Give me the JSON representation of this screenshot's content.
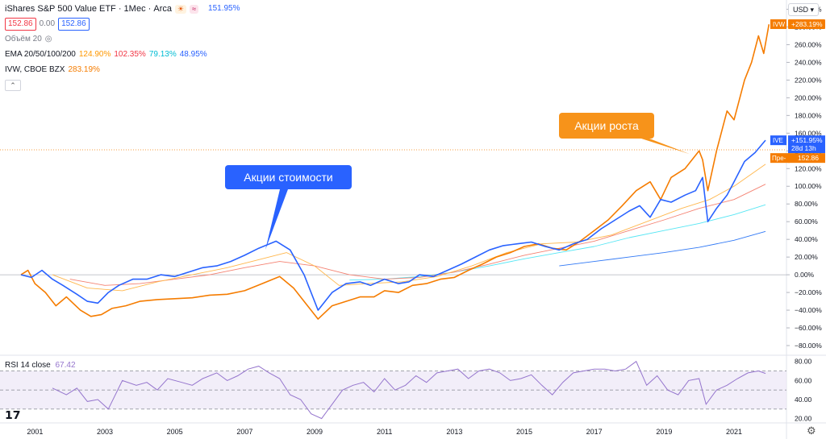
{
  "header": {
    "title": "iShares S&P 500 Value ETF · 1Мес · Arca",
    "pct": "151.95%",
    "open_box": "152.86",
    "change": "0.00",
    "close_box": "152.86",
    "volume_label": "Объём 20",
    "ema_label": "EMA 20/50/100/200",
    "ema_values": [
      "124.90%",
      "102.35%",
      "79.13%",
      "48.95%"
    ],
    "compare_label": "IVW, CBOE BZX",
    "compare_value": "283.19%",
    "currency": "USD"
  },
  "colors": {
    "ive": "#2962ff",
    "ivw": "#f57c00",
    "ema20": "#ffb74d",
    "ema50": "#f48272",
    "ema100": "#56e6f4",
    "ema200": "#3179f5",
    "rsi": "#9575cd",
    "callout_blue": "#2962ff",
    "callout_orange": "#f7931a"
  },
  "annotations": {
    "value": "Акции стоимости",
    "growth": "Акции роста"
  },
  "labels": {
    "ivw_tag": "IVW",
    "ivw_val": "+283.19%",
    "ive_tag": "IVE",
    "ive_val": "+151.95%",
    "ive_time": "28d 13h",
    "pre_tag": "Пре-",
    "pre_val": "152.86"
  },
  "rsi": {
    "label": "RSI 14 close",
    "value": "67.42"
  },
  "chart_data": {
    "type": "line",
    "x_ticks": [
      "2001",
      "2003",
      "2005",
      "2007",
      "2009",
      "2011",
      "2013",
      "2015",
      "2017",
      "2019",
      "2021"
    ],
    "y_ticks": [
      "300.00%",
      "280.00%",
      "260.00%",
      "240.00%",
      "220.00%",
      "200.00%",
      "180.00%",
      "160.00%",
      "140.00%",
      "120.00%",
      "100.00%",
      "80.00%",
      "60.00%",
      "40.00%",
      "20.00%",
      "0.00%",
      "−20.00%",
      "−40.00%",
      "−60.00%",
      "−80.00%"
    ],
    "y_tick_values": [
      300,
      280,
      260,
      240,
      220,
      200,
      180,
      160,
      140,
      120,
      100,
      80,
      60,
      40,
      20,
      0,
      -20,
      -40,
      -60,
      -80
    ],
    "ylim": [
      -90,
      305
    ],
    "xlim": [
      2000.0,
      2022.5
    ],
    "series": [
      {
        "name": "iShares S&P 500 Value ETF",
        "key": "ive",
        "x": [
          2000.6,
          2000.9,
          2001.2,
          2001.5,
          2001.8,
          2002.2,
          2002.5,
          2002.8,
          2003.1,
          2003.4,
          2003.8,
          2004.2,
          2004.6,
          2005.0,
          2005.4,
          2005.8,
          2006.2,
          2006.6,
          2007.0,
          2007.4,
          2007.9,
          2008.3,
          2008.7,
          2009.1,
          2009.5,
          2009.9,
          2010.3,
          2010.6,
          2011.0,
          2011.4,
          2011.7,
          2012.0,
          2012.4,
          2012.8,
          2013.2,
          2013.6,
          2014.0,
          2014.4,
          2014.8,
          2015.2,
          2015.6,
          2016.0,
          2016.4,
          2016.8,
          2017.2,
          2017.6,
          2018.0,
          2018.3,
          2018.6,
          2018.9,
          2019.2,
          2019.6,
          2019.9,
          2020.1,
          2020.25,
          2020.5,
          2020.8,
          2021.0,
          2021.3,
          2021.6,
          2021.9
        ],
        "values": [
          0,
          -3,
          5,
          -5,
          -12,
          -22,
          -30,
          -32,
          -20,
          -12,
          -5,
          -5,
          0,
          -2,
          3,
          8,
          10,
          15,
          22,
          30,
          38,
          28,
          0,
          -40,
          -20,
          -10,
          -8,
          -12,
          -5,
          -10,
          -8,
          0,
          -2,
          5,
          12,
          20,
          28,
          33,
          35,
          37,
          32,
          28,
          35,
          40,
          52,
          62,
          72,
          78,
          65,
          85,
          82,
          90,
          95,
          110,
          60,
          75,
          90,
          105,
          128,
          138,
          152
        ]
      },
      {
        "name": "IVW, CBOE BZX",
        "key": "ivw",
        "x": [
          2000.6,
          2000.8,
          2001.0,
          2001.3,
          2001.6,
          2001.9,
          2002.3,
          2002.6,
          2002.9,
          2003.2,
          2003.6,
          2004.0,
          2004.5,
          2005.0,
          2005.5,
          2006.0,
          2006.5,
          2007.0,
          2007.5,
          2008.0,
          2008.4,
          2008.8,
          2009.1,
          2009.5,
          2009.9,
          2010.3,
          2010.7,
          2011.0,
          2011.4,
          2011.8,
          2012.2,
          2012.6,
          2013.0,
          2013.4,
          2013.8,
          2014.2,
          2014.6,
          2015.0,
          2015.4,
          2015.8,
          2016.2,
          2016.6,
          2017.0,
          2017.4,
          2017.8,
          2018.2,
          2018.6,
          2018.9,
          2019.2,
          2019.6,
          2020.0,
          2020.1,
          2020.25,
          2020.5,
          2020.8,
          2021.0,
          2021.3,
          2021.5,
          2021.7,
          2021.85,
          2022.0
        ],
        "values": [
          0,
          5,
          -10,
          -20,
          -35,
          -25,
          -40,
          -47,
          -45,
          -38,
          -35,
          -30,
          -28,
          -27,
          -26,
          -23,
          -22,
          -18,
          -10,
          -2,
          -15,
          -35,
          -50,
          -35,
          -30,
          -25,
          -25,
          -18,
          -20,
          -12,
          -10,
          -5,
          -3,
          5,
          12,
          20,
          25,
          32,
          35,
          30,
          28,
          38,
          50,
          62,
          78,
          95,
          105,
          85,
          110,
          120,
          140,
          130,
          95,
          140,
          185,
          175,
          220,
          240,
          270,
          250,
          283
        ]
      },
      {
        "name": "EMA20",
        "key": "ema20",
        "x": [
          2001.5,
          2002.5,
          2003.5,
          2004.5,
          2005.5,
          2006.5,
          2007.5,
          2008.2,
          2009.0,
          2009.7,
          2010.5,
          2011.5,
          2012.5,
          2013.5,
          2014.5,
          2015.5,
          2016.5,
          2017.5,
          2018.5,
          2019.5,
          2020.3,
          2021.0,
          2021.9
        ],
        "values": [
          0,
          -15,
          -18,
          -8,
          0,
          8,
          18,
          25,
          10,
          -12,
          -10,
          -8,
          -2,
          10,
          25,
          35,
          37,
          45,
          60,
          75,
          85,
          100,
          124.9
        ]
      },
      {
        "name": "EMA50",
        "key": "ema50",
        "x": [
          2002.0,
          2003.0,
          2004.0,
          2005.0,
          2006.0,
          2007.0,
          2008.0,
          2009.0,
          2010.0,
          2011.0,
          2012.0,
          2013.0,
          2014.0,
          2015.0,
          2016.0,
          2017.0,
          2018.0,
          2019.0,
          2020.0,
          2021.0,
          2021.9
        ],
        "values": [
          -5,
          -12,
          -10,
          -5,
          0,
          8,
          15,
          10,
          0,
          -5,
          -3,
          3,
          12,
          22,
          30,
          38,
          50,
          62,
          75,
          85,
          102.35
        ]
      },
      {
        "name": "EMA100",
        "key": "ema100",
        "x": [
          2010.0,
          2011.0,
          2012.0,
          2013.0,
          2014.0,
          2015.0,
          2016.0,
          2017.0,
          2018.0,
          2019.0,
          2020.0,
          2021.0,
          2021.9
        ],
        "values": [
          -6,
          -5,
          -2,
          3,
          10,
          18,
          25,
          32,
          42,
          50,
          58,
          68,
          79.13
        ]
      },
      {
        "name": "EMA200",
        "key": "ema200",
        "x": [
          2016.0,
          2017.0,
          2018.0,
          2019.0,
          2020.0,
          2021.0,
          2021.9
        ],
        "values": [
          10,
          15,
          20,
          25,
          31,
          39,
          48.95
        ]
      }
    ],
    "rsi": {
      "y_ticks": [
        "80.00",
        "60.00",
        "40.00",
        "20.00"
      ],
      "y_tick_values": [
        80,
        60,
        40,
        20
      ],
      "bands": [
        70,
        50,
        30
      ],
      "ylim": [
        18,
        84
      ],
      "x": [
        2001.5,
        2001.9,
        2002.2,
        2002.5,
        2002.8,
        2003.1,
        2003.5,
        2003.9,
        2004.2,
        2004.5,
        2004.8,
        2005.2,
        2005.5,
        2005.8,
        2006.2,
        2006.5,
        2006.8,
        2007.1,
        2007.4,
        2007.7,
        2008.0,
        2008.3,
        2008.6,
        2008.9,
        2009.2,
        2009.5,
        2009.8,
        2010.1,
        2010.4,
        2010.7,
        2011.0,
        2011.3,
        2011.6,
        2011.9,
        2012.2,
        2012.5,
        2012.8,
        2013.1,
        2013.4,
        2013.7,
        2014.0,
        2014.3,
        2014.6,
        2014.9,
        2015.2,
        2015.5,
        2015.8,
        2016.1,
        2016.4,
        2016.7,
        2017.0,
        2017.3,
        2017.6,
        2017.9,
        2018.2,
        2018.5,
        2018.8,
        2019.1,
        2019.4,
        2019.7,
        2020.0,
        2020.2,
        2020.5,
        2020.8,
        2021.1,
        2021.4,
        2021.7,
        2021.9
      ],
      "values": [
        52,
        45,
        52,
        38,
        40,
        30,
        60,
        55,
        58,
        50,
        62,
        58,
        55,
        62,
        68,
        60,
        65,
        72,
        75,
        68,
        62,
        45,
        40,
        25,
        20,
        35,
        50,
        55,
        58,
        48,
        62,
        50,
        55,
        65,
        58,
        68,
        70,
        72,
        62,
        70,
        72,
        68,
        60,
        62,
        66,
        55,
        45,
        58,
        68,
        70,
        72,
        72,
        70,
        72,
        80,
        55,
        65,
        50,
        45,
        60,
        62,
        35,
        50,
        55,
        62,
        68,
        70,
        67.42
      ]
    }
  }
}
